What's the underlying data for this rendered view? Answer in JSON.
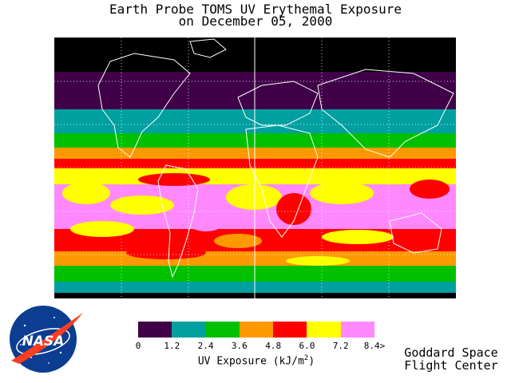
{
  "header": {
    "title_line1": "Earth Probe TOMS UV Erythemal Exposure",
    "title_line2": "on December 05, 2000"
  },
  "map": {
    "background_color": "#000000",
    "outline_color": "#ffffff",
    "bands": [
      {
        "name": "polar-north",
        "color": "#000000"
      },
      {
        "name": "0-1.2",
        "color": "#3f0047"
      },
      {
        "name": "1.2-2.4",
        "color": "#00a0a0"
      },
      {
        "name": "2.4-3.6",
        "color": "#00c000"
      },
      {
        "name": "3.6-4.8",
        "color": "#ff9900"
      },
      {
        "name": "4.8-6.0",
        "color": "#ff0000"
      },
      {
        "name": "6.0-7.2",
        "color": "#ffff00"
      },
      {
        "name": "7.2-8.4",
        "color": "#ff88ff"
      }
    ]
  },
  "legend": {
    "colors": [
      "#3f0047",
      "#00a0a0",
      "#00c000",
      "#ff9900",
      "#ff0000",
      "#ffff00",
      "#ff88ff"
    ],
    "ticks": [
      "0",
      "1.2",
      "2.4",
      "3.6",
      "4.8",
      "6.0",
      "7.2",
      "8.4>"
    ],
    "title_text": "UV Exposure (kJ/m",
    "title_sup": "2",
    "title_close": ")"
  },
  "logo": {
    "text": "NASA",
    "icon": "nasa-meatball-logo"
  },
  "credit": {
    "line1": "Goddard Space",
    "line2": "Flight Center"
  }
}
